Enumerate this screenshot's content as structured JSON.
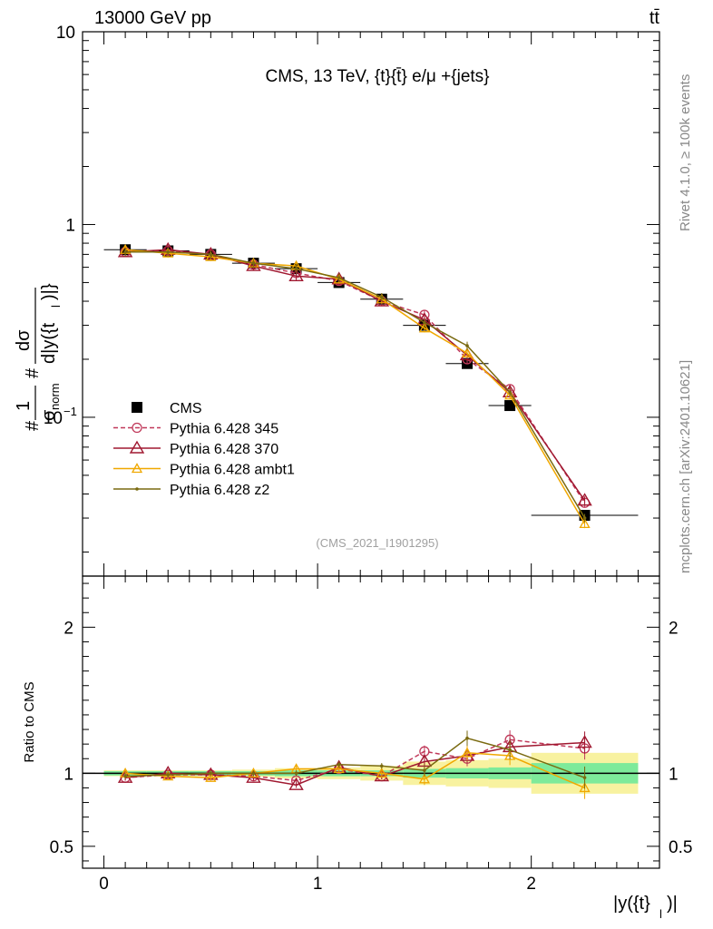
{
  "header": {
    "left": "13000 GeV pp",
    "right": "tt̄"
  },
  "side_labels": {
    "rivet": "Rivet 4.1.0, ≥ 100k events",
    "mcplots": "mcplots.cern.ch [arXiv:2401.10621]"
  },
  "chart_data": [
    {
      "type": "line",
      "panel": "main",
      "title": "CMS, 13 TeV, {t}{t̄} e/μ +{jets}",
      "watermark": "(CMS_2021_I1901295)",
      "ylabel": "#1/σ_norm #dσ/d|y({t}_l)|}",
      "ylabel_parts": {
        "hash": "#",
        "one": "1",
        "sigma_norm": "σ",
        "norm_sub": "norm",
        "dsigma": "dσ",
        "denominator": "d|y({t",
        "l_sub": "l",
        "close": ")|}"
      },
      "xlabel": "|y({t}_l)|",
      "yscale": "log",
      "ylim": [
        0.015,
        10
      ],
      "xlim": [
        -0.1,
        2.6
      ],
      "ytick_labels": [
        "10",
        "1",
        "10"
      ],
      "ytick_exponent": "−1",
      "legend_position": "middle-left",
      "legend": [
        "CMS",
        "Pythia 6.428 345",
        "Pythia 6.428 370",
        "Pythia 6.428 ambt1",
        "Pythia 6.428 z2"
      ],
      "x": [
        0.1,
        0.3,
        0.5,
        0.7,
        0.9,
        1.1,
        1.3,
        1.5,
        1.7,
        1.9,
        2.25
      ],
      "series": [
        {
          "name": "CMS",
          "color": "#000000",
          "marker": "square",
          "values": [
            0.74,
            0.73,
            0.7,
            0.63,
            0.59,
            0.5,
            0.41,
            0.3,
            0.19,
            0.115,
            0.031
          ]
        },
        {
          "name": "Pythia 6.428 345",
          "color": "#c0395a",
          "marker": "circle",
          "dashed": true,
          "values": [
            0.72,
            0.73,
            0.7,
            0.62,
            0.56,
            0.51,
            0.4,
            0.34,
            0.2,
            0.14,
            0.036
          ]
        },
        {
          "name": "Pythia 6.428 370",
          "color": "#a01830",
          "marker": "triangle",
          "values": [
            0.72,
            0.74,
            0.7,
            0.61,
            0.54,
            0.52,
            0.4,
            0.32,
            0.21,
            0.135,
            0.037
          ]
        },
        {
          "name": "Pythia 6.428 ambt1",
          "color": "#f0a800",
          "marker": "triangle-small",
          "values": [
            0.74,
            0.71,
            0.68,
            0.63,
            0.61,
            0.52,
            0.41,
            0.29,
            0.215,
            0.13,
            0.028
          ]
        },
        {
          "name": "Pythia 6.428 z2",
          "color": "#7a6a10",
          "marker": "dot",
          "values": [
            0.72,
            0.72,
            0.7,
            0.63,
            0.59,
            0.53,
            0.42,
            0.31,
            0.235,
            0.135,
            0.03
          ]
        }
      ]
    },
    {
      "type": "line",
      "panel": "ratio",
      "ylabel": "Ratio to CMS",
      "xlabel": "|y({t}_l)|",
      "xlabel_parts": {
        "main": "|y({t}",
        "sub": "l",
        "close": ")|"
      },
      "ylim": [
        0.35,
        2.35
      ],
      "xlim": [
        -0.1,
        2.6
      ],
      "ytick_labels": [
        "0.5",
        "1",
        "2"
      ],
      "xtick_labels": [
        "0",
        "1",
        "2"
      ],
      "bands": {
        "x_edges": [
          0.0,
          0.2,
          0.4,
          0.6,
          0.8,
          1.0,
          1.2,
          1.4,
          1.6,
          1.8,
          2.0,
          2.5
        ],
        "inner": [
          0.015,
          0.015,
          0.015,
          0.015,
          0.02,
          0.02,
          0.02,
          0.03,
          0.035,
          0.04,
          0.07
        ],
        "outer": [
          0.02,
          0.02,
          0.02,
          0.025,
          0.035,
          0.04,
          0.05,
          0.08,
          0.09,
          0.1,
          0.14
        ]
      },
      "x": [
        0.1,
        0.3,
        0.5,
        0.7,
        0.9,
        1.1,
        1.3,
        1.5,
        1.7,
        1.9,
        2.25
      ],
      "series": [
        {
          "name": "Pythia 6.428 345",
          "values": [
            0.97,
            0.99,
            0.99,
            0.98,
            0.95,
            1.03,
            0.98,
            1.15,
            1.1,
            1.23,
            1.17
          ]
        },
        {
          "name": "Pythia 6.428 370",
          "values": [
            0.97,
            1.0,
            0.99,
            0.97,
            0.92,
            1.04,
            0.98,
            1.08,
            1.12,
            1.18,
            1.21
          ]
        },
        {
          "name": "Pythia 6.428 ambt1",
          "values": [
            1.0,
            0.98,
            0.97,
            1.0,
            1.03,
            1.03,
            1.0,
            0.96,
            1.14,
            1.12,
            0.9
          ]
        },
        {
          "name": "Pythia 6.428 z2",
          "values": [
            0.98,
            0.99,
            1.0,
            1.0,
            1.0,
            1.06,
            1.05,
            1.02,
            1.24,
            1.16,
            0.97
          ]
        }
      ]
    }
  ]
}
